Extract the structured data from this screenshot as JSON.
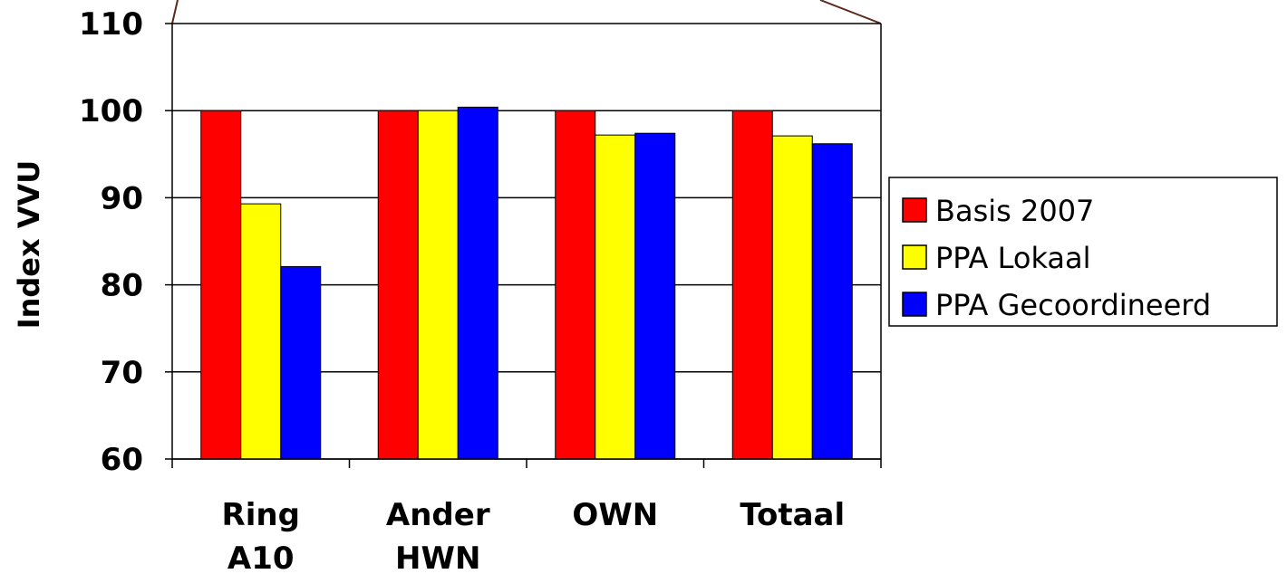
{
  "chart_data": {
    "type": "bar",
    "ylabel": "Index VVU",
    "ylim": [
      60,
      110
    ],
    "yticks": [
      60,
      70,
      80,
      90,
      100,
      110
    ],
    "grid": true,
    "legend_position": "right",
    "categories": [
      [
        "Ring",
        "A10"
      ],
      [
        "Ander",
        "HWN"
      ],
      [
        "OWN"
      ],
      [
        "Totaal"
      ]
    ],
    "series": [
      {
        "name": "Basis 2007",
        "color": "#ff0000",
        "values": [
          100,
          100,
          100,
          100
        ]
      },
      {
        "name": "PPA Lokaal",
        "color": "#ffff00",
        "values": [
          89.3,
          100,
          97.2,
          97.1
        ]
      },
      {
        "name": "PPA Gecoordineerd",
        "color": "#0000ff",
        "values": [
          82.1,
          100.4,
          97.4,
          96.2
        ]
      }
    ]
  }
}
